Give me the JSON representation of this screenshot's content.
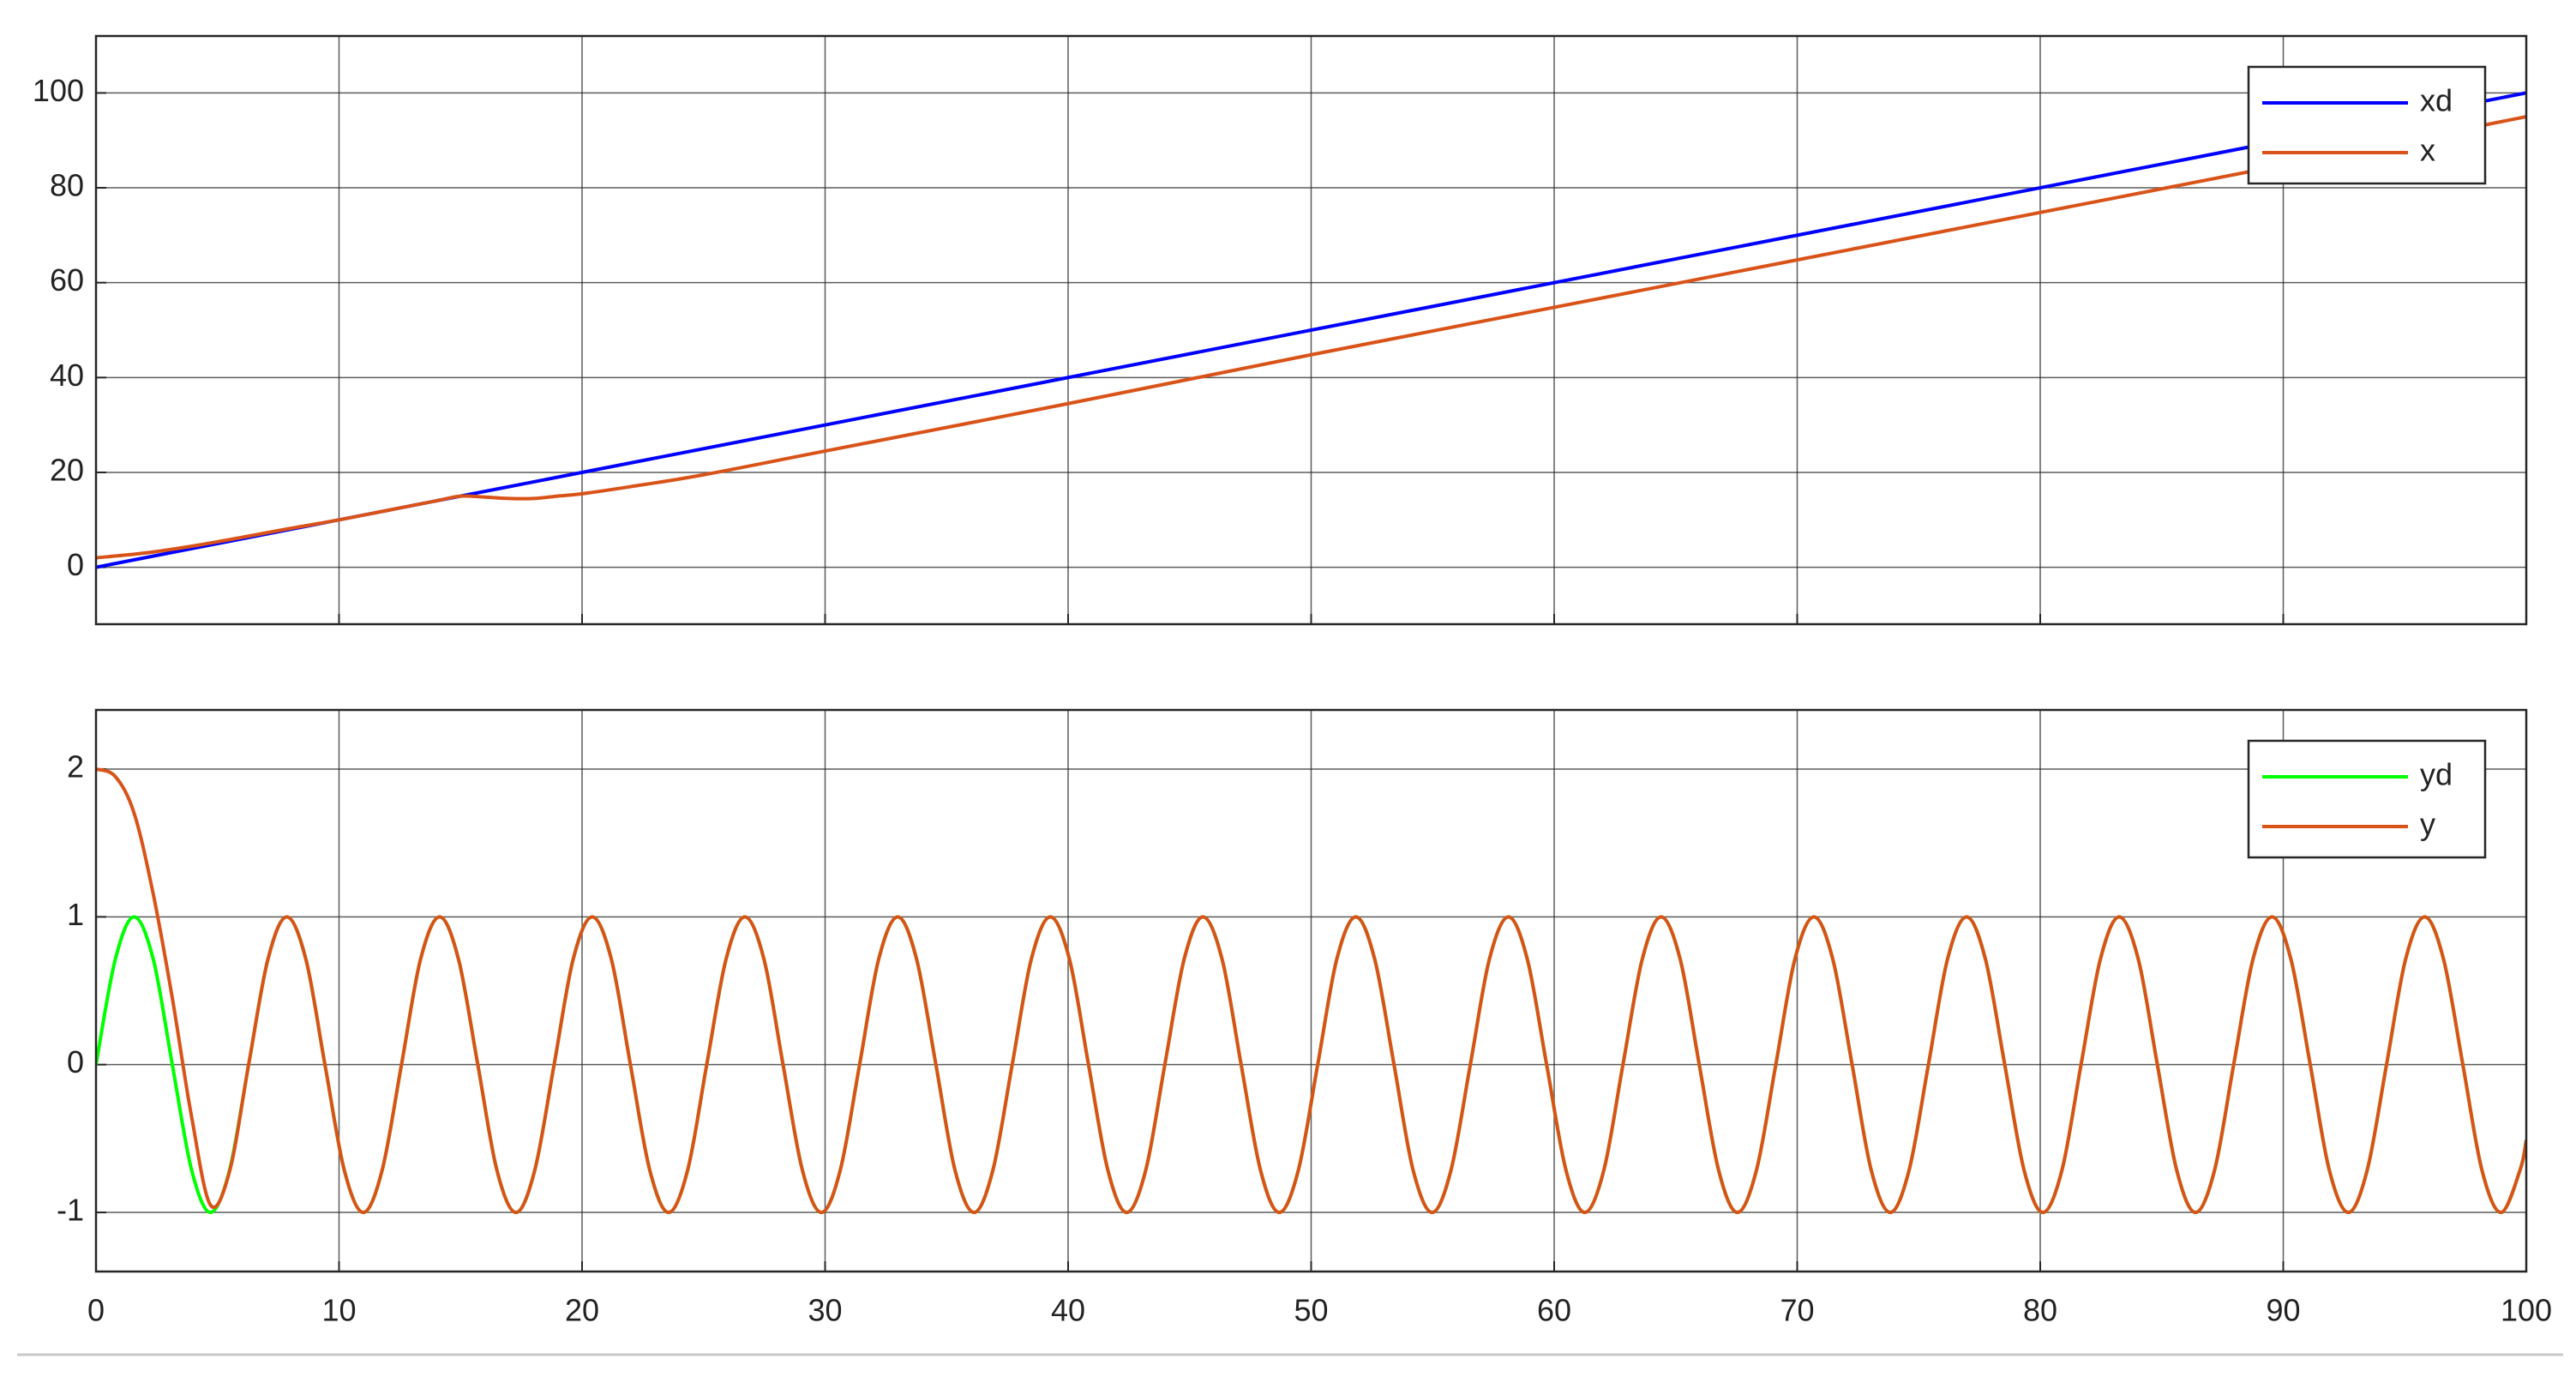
{
  "chart_data": [
    {
      "type": "line",
      "xlim": [
        0,
        100
      ],
      "ylim": [
        -12,
        112
      ],
      "yticks": [
        0,
        20,
        40,
        60,
        80,
        100
      ],
      "grid": true,
      "legend": "upper right",
      "series": [
        {
          "name": "xd",
          "color": "#0000ff",
          "x": [
            0,
            100
          ],
          "values": [
            0,
            100
          ]
        },
        {
          "name": "x",
          "color": "#d95319",
          "x": [
            0,
            2,
            4,
            6,
            8,
            10,
            12,
            14,
            15,
            16,
            17,
            18,
            19,
            20,
            22,
            25,
            30,
            40,
            50,
            60,
            70,
            80,
            90,
            100
          ],
          "values": [
            2,
            3,
            4.5,
            6.3,
            8.2,
            10,
            12,
            14,
            15,
            14.8,
            14.5,
            14.5,
            15,
            15.5,
            17,
            19.5,
            24.5,
            34.5,
            44.8,
            54.8,
            64.8,
            74.8,
            84.8,
            95
          ]
        }
      ]
    },
    {
      "type": "line",
      "xlim": [
        0,
        100
      ],
      "ylim": [
        -1.4,
        2.4
      ],
      "yticks": [
        -1,
        0,
        1,
        2
      ],
      "xticks": [
        0,
        10,
        20,
        30,
        40,
        50,
        60,
        70,
        80,
        90,
        100
      ],
      "grid": true,
      "legend": "upper right",
      "x": [
        0,
        0.79,
        1.57,
        2.36,
        3.14,
        3.93,
        4.71,
        5.5,
        6.28,
        7.07,
        7.85,
        8.64,
        9.42,
        10.21,
        11.0,
        11.78,
        12.57,
        13.35,
        14.14,
        14.92,
        15.71,
        16.49,
        17.28,
        18.06,
        18.85,
        19.63,
        20.42,
        21.21,
        21.99,
        22.78,
        23.56,
        24.35,
        25.13,
        25.92,
        26.7,
        27.49,
        28.27,
        29.06,
        29.85,
        30.63,
        31.42,
        32.2,
        32.99,
        33.77,
        34.56,
        35.34,
        36.13,
        36.91,
        37.7,
        38.48,
        39.27,
        40.06,
        40.84,
        41.63,
        42.41,
        43.2,
        43.98,
        44.77,
        45.55,
        46.34,
        47.12,
        47.91,
        48.69,
        49.48,
        50.27,
        51.05,
        51.84,
        52.62,
        53.41,
        54.19,
        54.98,
        55.76,
        56.55,
        57.33,
        58.12,
        58.9,
        59.69,
        60.48,
        61.26,
        62.05,
        62.83,
        63.62,
        64.4,
        65.19,
        65.97,
        66.76,
        67.54,
        68.33,
        69.12,
        69.9,
        70.69,
        71.47,
        72.26,
        73.04,
        73.83,
        74.61,
        75.4,
        76.18,
        76.97,
        77.75,
        78.54,
        79.33,
        80.11,
        80.9,
        81.68,
        82.47,
        83.25,
        84.04,
        84.82,
        85.61,
        86.39,
        87.18,
        87.96,
        88.75,
        89.54,
        90.32,
        91.11,
        91.89,
        92.68,
        93.46,
        94.25,
        95.03,
        95.82,
        96.6,
        97.39,
        98.17,
        98.96,
        99.75,
        100
      ],
      "series": [
        {
          "name": "yd",
          "color": "#00ff00",
          "values": [
            0,
            0.71,
            1,
            0.71,
            0,
            -0.71,
            -1,
            -0.71,
            0,
            0.71,
            1,
            0.71,
            0,
            -0.71,
            -1,
            -0.71,
            0,
            0.71,
            1,
            0.71,
            0,
            -0.71,
            -1,
            -0.71,
            0,
            0.71,
            1,
            0.71,
            0,
            -0.71,
            -1,
            -0.71,
            0,
            0.71,
            1,
            0.71,
            0,
            -0.71,
            -1,
            -0.71,
            0,
            0.71,
            1,
            0.71,
            0,
            -0.71,
            -1,
            -0.71,
            0,
            0.71,
            1,
            0.71,
            0,
            -0.71,
            -1,
            -0.71,
            0,
            0.71,
            1,
            0.71,
            0,
            -0.71,
            -1,
            -0.71,
            0,
            0.71,
            1,
            0.71,
            0,
            -0.71,
            -1,
            -0.71,
            0,
            0.71,
            1,
            0.71,
            0,
            -0.71,
            -1,
            -0.71,
            0,
            0.71,
            1,
            0.71,
            0,
            -0.71,
            -1,
            -0.71,
            0,
            0.71,
            1,
            0.71,
            0,
            -0.71,
            -1,
            -0.71,
            0,
            0.71,
            1,
            0.71,
            0,
            -0.71,
            -1,
            -0.71,
            0,
            0.71,
            1,
            0.71,
            0,
            -0.71,
            -1,
            -0.71,
            0,
            0.71,
            1,
            0.71,
            0,
            -0.71,
            -1,
            -0.71,
            0,
            0.71,
            1,
            0.71,
            0,
            -0.71,
            -1,
            -0.71,
            -0.51
          ]
        },
        {
          "name": "y",
          "color": "#d95319",
          "values": [
            2,
            1.95,
            1.7,
            1.15,
            0.45,
            -0.35,
            -0.95,
            -0.72,
            0,
            0.71,
            1,
            0.71,
            0,
            -0.71,
            -1,
            -0.71,
            0,
            0.71,
            1,
            0.71,
            0,
            -0.71,
            -1,
            -0.71,
            0,
            0.71,
            1,
            0.71,
            0,
            -0.71,
            -1,
            -0.71,
            0,
            0.71,
            1,
            0.71,
            0,
            -0.71,
            -1,
            -0.71,
            0,
            0.71,
            1,
            0.71,
            0,
            -0.71,
            -1,
            -0.71,
            0,
            0.71,
            1,
            0.71,
            0,
            -0.71,
            -1,
            -0.71,
            0,
            0.71,
            1,
            0.71,
            0,
            -0.71,
            -1,
            -0.71,
            0,
            0.71,
            1,
            0.71,
            0,
            -0.71,
            -1,
            -0.71,
            0,
            0.71,
            1,
            0.71,
            0,
            -0.71,
            -1,
            -0.71,
            0,
            0.71,
            1,
            0.71,
            0,
            -0.71,
            -1,
            -0.71,
            0,
            0.71,
            1,
            0.71,
            0,
            -0.71,
            -1,
            -0.71,
            0,
            0.71,
            1,
            0.71,
            0,
            -0.71,
            -1,
            -0.71,
            0,
            0.71,
            1,
            0.71,
            0,
            -0.71,
            -1,
            -0.71,
            0,
            0.71,
            1,
            0.71,
            0,
            -0.71,
            -1,
            -0.71,
            0,
            0.71,
            1,
            0.71,
            0,
            -0.71,
            -1,
            -0.71,
            -0.51
          ]
        }
      ]
    }
  ]
}
